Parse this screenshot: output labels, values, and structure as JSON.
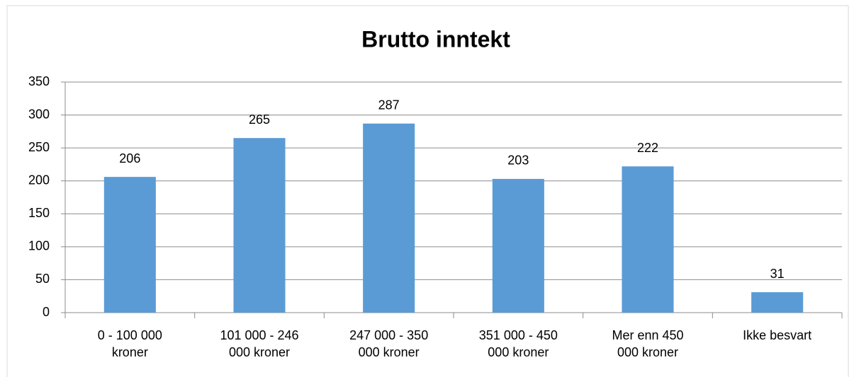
{
  "chart_data": {
    "type": "bar",
    "title": "Brutto inntekt",
    "categories": [
      "0 - 100 000 kroner",
      "101 000 - 246 000 kroner",
      "247 000 - 350 000 kroner",
      "351 000 - 450 000 kroner",
      "Mer enn 450 000 kroner",
      "Ikke besvart"
    ],
    "values": [
      206,
      265,
      287,
      203,
      222,
      31
    ],
    "color": "#5b9bd5",
    "ylim": [
      0,
      350
    ],
    "yticks": [
      0,
      50,
      100,
      150,
      200,
      250,
      300,
      350
    ],
    "grid": true
  }
}
